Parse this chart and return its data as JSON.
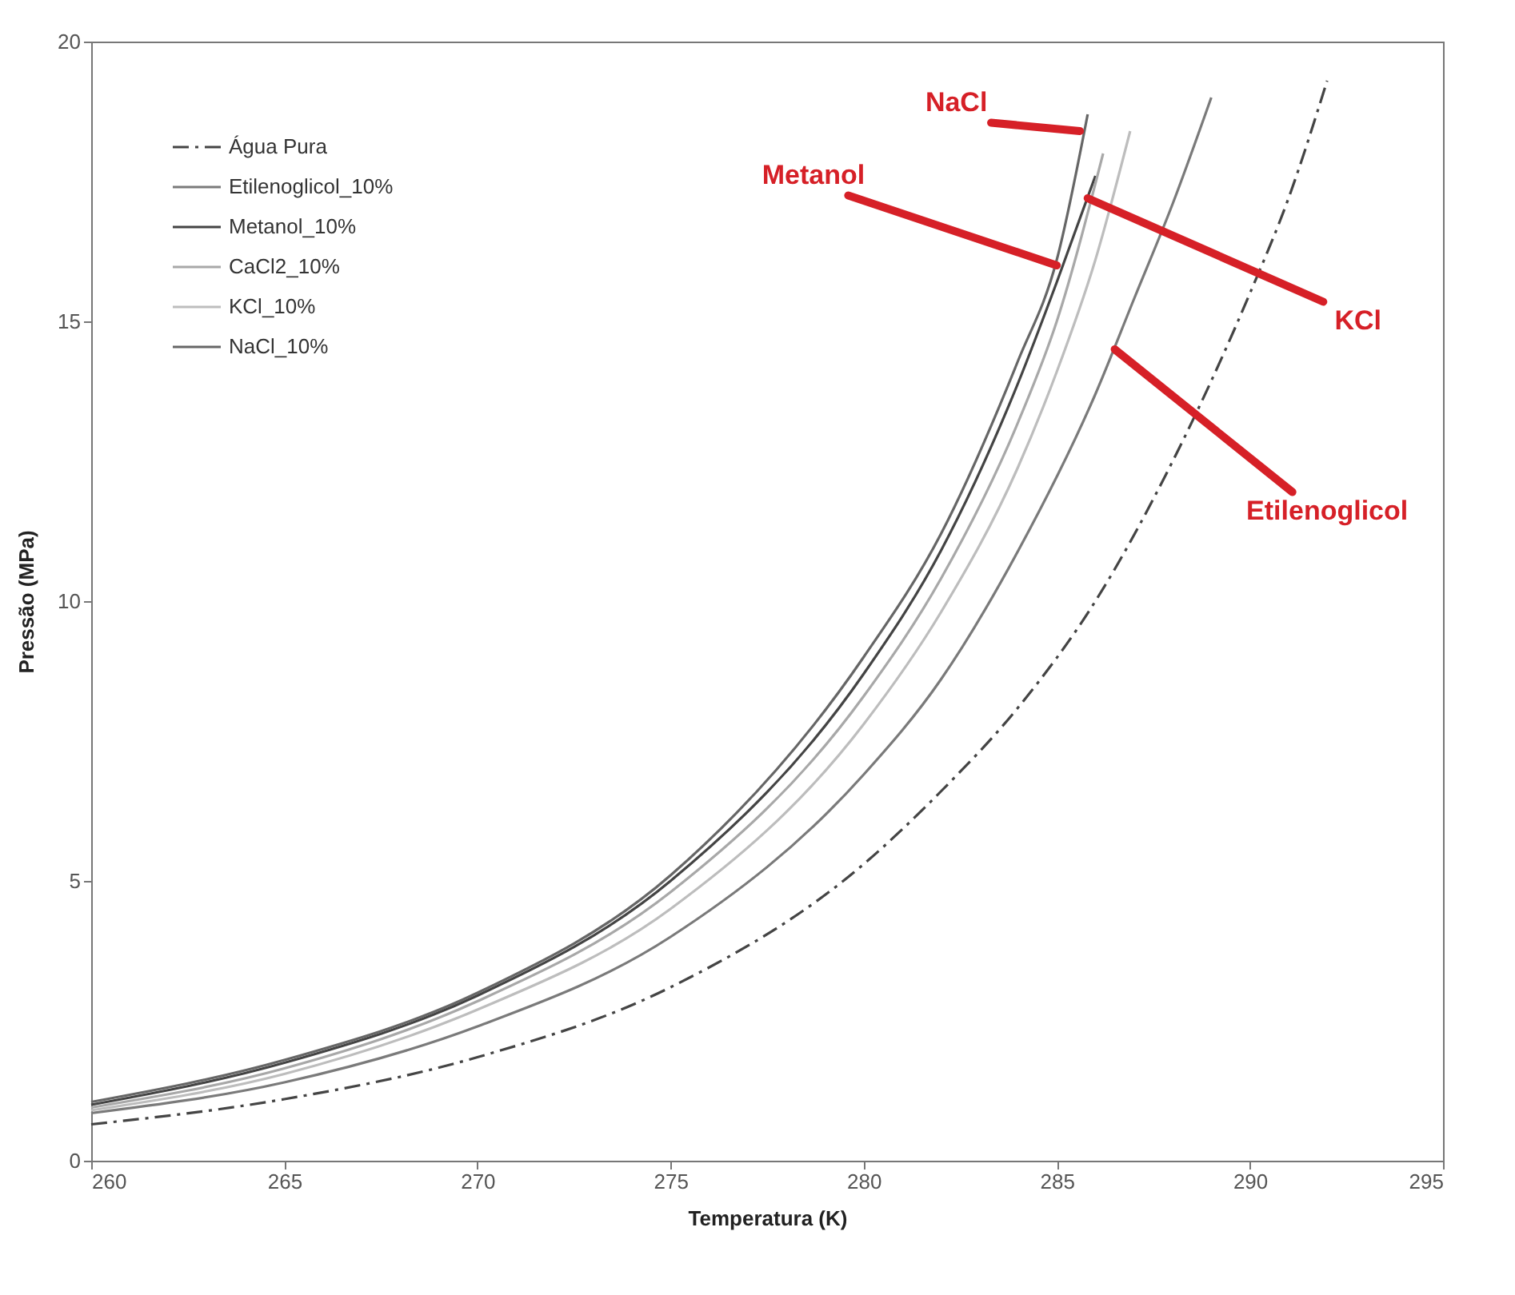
{
  "chart_data": {
    "type": "line",
    "xlabel": "Temperatura (K)",
    "ylabel": "Pressão (MPa)",
    "xlim": [
      260,
      295
    ],
    "xticks": [
      260,
      265,
      270,
      275,
      280,
      285,
      290,
      295
    ],
    "ylim": [
      0,
      20
    ],
    "yticks": [
      0,
      5,
      10,
      15,
      20
    ],
    "grid": false,
    "legend": "top left",
    "marker": "none",
    "series": [
      {
        "name": "Água Pura",
        "color": "#444444",
        "line_style": "dashed",
        "x": [
          260,
          265,
          270,
          275,
          280,
          282,
          284,
          286,
          288,
          290,
          291,
          292
        ],
        "values": [
          0.65,
          1.1,
          1.85,
          3.1,
          5.3,
          6.6,
          8.1,
          10.0,
          12.5,
          15.5,
          17.2,
          19.3
        ]
      },
      {
        "name": "Etilenoglicol_10%",
        "color": "#7a7a7a",
        "line_style": "solid",
        "x": [
          260,
          265,
          270,
          275,
          280,
          282,
          284,
          286,
          287,
          288,
          289
        ],
        "values": [
          0.85,
          1.4,
          2.4,
          4.0,
          6.9,
          8.6,
          10.9,
          13.7,
          15.4,
          17.1,
          19.0
        ]
      },
      {
        "name": "Metanol_10%",
        "color": "#444444",
        "line_style": "solid",
        "x": [
          260,
          265,
          270,
          275,
          280,
          282,
          284,
          285,
          286
        ],
        "values": [
          1.0,
          1.75,
          2.95,
          5.0,
          8.7,
          10.9,
          13.9,
          15.7,
          17.6
        ]
      },
      {
        "name": "CaCl2_10%",
        "color": "#a8a8a8",
        "line_style": "solid",
        "x": [
          260,
          265,
          270,
          275,
          280,
          282,
          284,
          285,
          286.2
        ],
        "values": [
          0.95,
          1.65,
          2.85,
          4.8,
          8.3,
          10.4,
          13.2,
          15.0,
          18.0
        ]
      },
      {
        "name": "KCl_10%",
        "color": "#bdbdbd",
        "line_style": "solid",
        "x": [
          260,
          265,
          270,
          275,
          280,
          282,
          284,
          285,
          286,
          286.9
        ],
        "values": [
          0.9,
          1.55,
          2.7,
          4.5,
          7.8,
          9.8,
          12.4,
          14.1,
          16.1,
          18.4
        ]
      },
      {
        "name": "NaCl_10%",
        "color": "#666666",
        "line_style": "solid",
        "x": [
          260,
          265,
          270,
          275,
          280,
          282,
          284,
          285,
          285.8
        ],
        "values": [
          1.05,
          1.8,
          3.0,
          5.1,
          9.0,
          11.2,
          14.3,
          16.1,
          18.7
        ]
      }
    ],
    "annotations": [
      {
        "text": "NaCl",
        "x": 285.6,
        "y": 18.4
      },
      {
        "text": "Metanol",
        "x": 285.0,
        "y": 16.0
      },
      {
        "text": "KCl",
        "x": 285.8,
        "y": 17.2
      },
      {
        "text": "Etilenoglicol",
        "x": 286.5,
        "y": 14.5
      }
    ]
  }
}
